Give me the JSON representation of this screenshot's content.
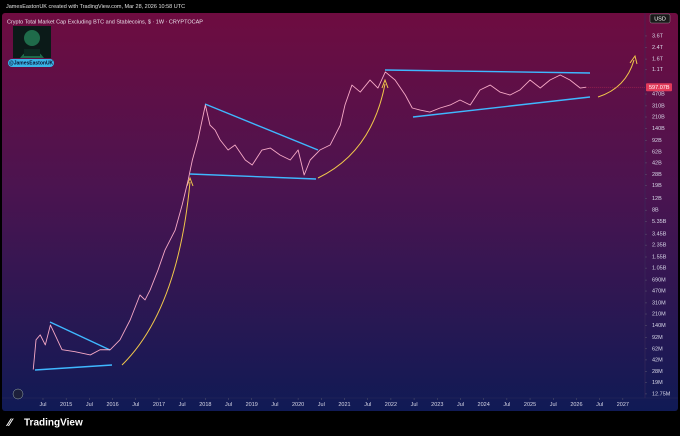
{
  "header": "JamesEastonUK created with TradingView.com, Mar 28, 2026 10:58 UTC",
  "handle": "@JamesEastonUK",
  "currency": "USD",
  "brand": "TradingView",
  "chart_data": {
    "type": "line",
    "title": "Crypto Total Market Cap Excluding BTC and Stablecoins, $ · 1W · CRYPTOCAP",
    "log_scale": true,
    "grid": false,
    "color": "#f6a9c6",
    "x": [
      2014.29,
      2014.35,
      2014.44,
      2014.55,
      2014.66,
      2014.91,
      2015.19,
      2015.52,
      2015.73,
      2015.95,
      2016.16,
      2016.38,
      2016.59,
      2016.7,
      2016.81,
      2016.98,
      2017.13,
      2017.35,
      2017.5,
      2017.63,
      2017.72,
      2017.84,
      2018.0,
      2018.1,
      2018.21,
      2018.32,
      2018.49,
      2018.64,
      2018.86,
      2019.01,
      2019.22,
      2019.4,
      2019.61,
      2019.83,
      2020.0,
      2020.13,
      2020.26,
      2020.47,
      2020.69,
      2020.91,
      2021.01,
      2021.16,
      2021.34,
      2021.55,
      2021.72,
      2021.88,
      2022.09,
      2022.31,
      2022.46,
      2022.63,
      2022.84,
      2023.06,
      2023.28,
      2023.49,
      2023.71,
      2023.92,
      2024.14,
      2024.35,
      2024.57,
      2024.78,
      2025.0,
      2025.22,
      2025.43,
      2025.65,
      2025.86,
      2026.08,
      2026.21
    ],
    "values": [
      30000000.0,
      85000000.0,
      101000000.0,
      71000000.0,
      143000000.0,
      60000000.0,
      56000000.0,
      50000000.0,
      60000000.0,
      60000000.0,
      85000000.0,
      171000000.0,
      409000000.0,
      344000000.0,
      488000000.0,
      984000000.0,
      1980000000.0,
      3990000000.0,
      9600000000.0,
      23100000000.0,
      46500000000.0,
      93700000000.0,
      320000000000.0,
      158000000000.0,
      133000000000.0,
      93700000000.0,
      66000000000.0,
      78600000000.0,
      46500000000.0,
      39000000000.0,
      66000000000.0,
      70800000000.0,
      55400000000.0,
      46500000000.0,
      66000000000.0,
      27500000000.0,
      46500000000.0,
      66000000000.0,
      78600000000.0,
      158000000000.0,
      320000000000.0,
      644000000000.0,
      504000000000.0,
      768000000000.0,
      580000000000.0,
      1020000000000.0,
      768000000000.0,
      454000000000.0,
      288000000000.0,
      268000000000.0,
      250000000000.0,
      288000000000.0,
      320000000000.0,
      381000000000.0,
      320000000000.0,
      541000000000.0,
      644000000000.0,
      504000000000.0,
      454000000000.0,
      541000000000.0,
      768000000000.0,
      580000000000.0,
      768000000000.0,
      915000000000.0,
      768000000000.0,
      580000000000.0,
      597070000000.0
    ],
    "last_value_label": "597.07B",
    "xlim": [
      2014.22,
      2027.37
    ],
    "ylim": [
      10300000.0,
      4760000000000.0
    ],
    "xticks": [
      {
        "value": 2014.5,
        "label": "Jul"
      },
      2015,
      {
        "value": 2015.5,
        "label": "Jul"
      },
      2016,
      {
        "value": 2016.5,
        "label": "Jul"
      },
      2017,
      {
        "value": 2017.5,
        "label": "Jul"
      },
      2018,
      {
        "value": 2018.5,
        "label": "Jul"
      },
      2019,
      {
        "value": 2019.5,
        "label": "Jul"
      },
      2020,
      {
        "value": 2020.5,
        "label": "Jul"
      },
      2021,
      {
        "value": 2021.5,
        "label": "Jul"
      },
      2022,
      {
        "value": 2022.5,
        "label": "Jul"
      },
      2023,
      {
        "value": 2023.5,
        "label": "Jul"
      },
      2024,
      {
        "value": 2024.5,
        "label": "Jul"
      },
      2025,
      {
        "value": 2025.5,
        "label": "Jul"
      },
      2026,
      {
        "value": 2026.5,
        "label": "Jul"
      },
      2027
    ],
    "yticks": [
      {
        "value": 3600000000000.0,
        "label": "3.6T"
      },
      {
        "value": 2400000000000.0,
        "label": "2.4T"
      },
      {
        "value": 1600000000000.0,
        "label": "1.6T"
      },
      {
        "value": 1100000000000.0,
        "label": "1.1T"
      },
      {
        "value": 470000000000.0,
        "label": "470B"
      },
      {
        "value": 310000000000.0,
        "label": "310B"
      },
      {
        "value": 210000000000.0,
        "label": "210B"
      },
      {
        "value": 140000000000.0,
        "label": "140B"
      },
      {
        "value": 92000000000.0,
        "label": "92B"
      },
      {
        "value": 62000000000.0,
        "label": "62B"
      },
      {
        "value": 42000000000.0,
        "label": "42B"
      },
      {
        "value": 28000000000.0,
        "label": "28B"
      },
      {
        "value": 19000000000.0,
        "label": "19B"
      },
      {
        "value": 12000000000.0,
        "label": "12B"
      },
      {
        "value": 8000000000.0,
        "label": "8B"
      },
      {
        "value": 5350000000.0,
        "label": "5.35B"
      },
      {
        "value": 3450000000.0,
        "label": "3.45B"
      },
      {
        "value": 2350000000.0,
        "label": "2.35B"
      },
      {
        "value": 1550000000.0,
        "label": "1.55B"
      },
      {
        "value": 1050000000.0,
        "label": "1.05B"
      },
      {
        "value": 690000000.0,
        "label": "690M"
      },
      {
        "value": 470000000.0,
        "label": "470M"
      },
      {
        "value": 310000000.0,
        "label": "310M"
      },
      {
        "value": 210000000.0,
        "label": "210M"
      },
      {
        "value": 140000000.0,
        "label": "140M"
      },
      {
        "value": 92000000.0,
        "label": "92M"
      },
      {
        "value": 62000000.0,
        "label": "62M"
      },
      {
        "value": 42000000.0,
        "label": "42M"
      },
      {
        "value": 28000000.0,
        "label": "28M"
      },
      {
        "value": 19000000.0,
        "label": "19M"
      },
      {
        "value": 12750000.0,
        "label": "12.75M"
      }
    ]
  }
}
